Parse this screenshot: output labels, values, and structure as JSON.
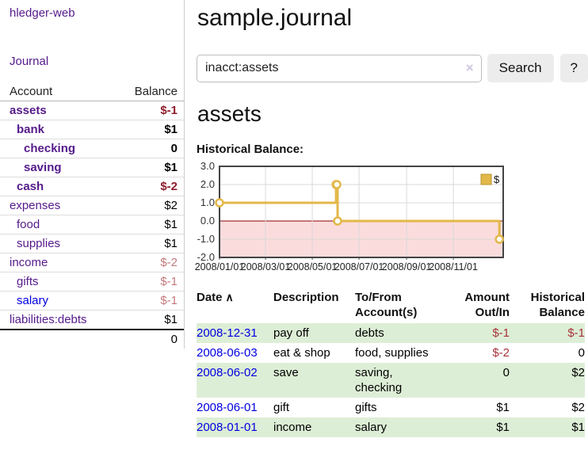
{
  "sidebar": {
    "brand": "hledger-web",
    "journal_link": "Journal",
    "accounts_table": {
      "headers": {
        "account": "Account",
        "balance": "Balance"
      },
      "rows": [
        {
          "name": "assets",
          "depth": 1,
          "bold": true,
          "name_color": "purple",
          "balance": "$-1",
          "balance_class": "neg-bold"
        },
        {
          "name": "bank",
          "depth": 2,
          "bold": true,
          "name_color": "purple",
          "balance": "$1",
          "balance_class": ""
        },
        {
          "name": "checking",
          "depth": 3,
          "bold": true,
          "name_color": "purple",
          "balance": "0",
          "balance_class": ""
        },
        {
          "name": "saving",
          "depth": 3,
          "bold": true,
          "name_color": "purple",
          "balance": "$1",
          "balance_class": ""
        },
        {
          "name": "cash",
          "depth": 2,
          "bold": true,
          "name_color": "purple",
          "balance": "$-2",
          "balance_class": "neg-bold"
        },
        {
          "name": "expenses",
          "depth": 1,
          "bold": false,
          "name_color": "purple",
          "balance": "$2",
          "balance_class": ""
        },
        {
          "name": "food",
          "depth": 2,
          "bold": false,
          "name_color": "purple",
          "balance": "$1",
          "balance_class": ""
        },
        {
          "name": "supplies",
          "depth": 2,
          "bold": false,
          "name_color": "purple",
          "balance": "$1",
          "balance_class": ""
        },
        {
          "name": "income",
          "depth": 1,
          "bold": false,
          "name_color": "purple",
          "balance": "$-2",
          "balance_class": "neg-light"
        },
        {
          "name": "gifts",
          "depth": 2,
          "bold": false,
          "name_color": "purple",
          "balance": "$-1",
          "balance_class": "neg-light"
        },
        {
          "name": "salary",
          "depth": 2,
          "bold": false,
          "name_color": "blue",
          "balance": "$-1",
          "balance_class": "neg-light"
        },
        {
          "name": "liabilities:debts",
          "depth": 1,
          "bold": false,
          "name_color": "purple",
          "balance": "$1",
          "balance_class": ""
        }
      ],
      "total": "0"
    }
  },
  "header": {
    "title": "sample.journal"
  },
  "search": {
    "value": "inacct:assets",
    "clear_icon": "×",
    "button_label": "Search",
    "help_label": "?"
  },
  "account_page": {
    "heading": "assets",
    "chart_title": "Historical Balance:"
  },
  "chart_data": {
    "type": "line",
    "step": true,
    "title": "Historical Balance",
    "legend": "$",
    "legend_position": "top-right",
    "series_color": "#e3b84a",
    "negative_fill": "#fbdcdc",
    "zero_line_color": "#8b0000",
    "grid": true,
    "ylim": [
      -2,
      3
    ],
    "y_ticks": [
      3.0,
      2.0,
      1.0,
      0.0,
      -1.0,
      -2.0
    ],
    "x_range_days": [
      0,
      370
    ],
    "x_tick_days": [
      0,
      60,
      121,
      182,
      244,
      305
    ],
    "x_ticks": [
      "2008/01/01",
      "2008/03/01",
      "2008/05/01",
      "2008/07/01",
      "2008/09/01",
      "2008/11/01"
    ],
    "points": [
      {
        "date": "2008-01-01",
        "day": 0,
        "value": 1
      },
      {
        "date": "2008-06-01",
        "day": 152,
        "value": 2
      },
      {
        "date": "2008-06-02",
        "day": 153,
        "value": 2
      },
      {
        "date": "2008-06-03",
        "day": 154,
        "value": 0
      },
      {
        "date": "2008-12-31",
        "day": 365,
        "value": -1
      }
    ]
  },
  "register_table": {
    "headers": {
      "date": "Date",
      "sort_icon": "∧",
      "description": "Description",
      "tofrom_line1": "To/From",
      "tofrom_line2": "Account(s)",
      "amount_line1": "Amount",
      "amount_line2": "Out/In",
      "balance_line1": "Historical",
      "balance_line2": "Balance"
    },
    "rows": [
      {
        "date": "2008-12-31",
        "description": "pay off",
        "accounts_lines": [
          "debts"
        ],
        "amount": "$-1",
        "amount_class": "neg",
        "balance": "$-1",
        "balance_class": "neg"
      },
      {
        "date": "2008-06-03",
        "description": "eat & shop",
        "accounts_lines": [
          "food, supplies"
        ],
        "amount": "$-2",
        "amount_class": "neg",
        "balance": "0",
        "balance_class": ""
      },
      {
        "date": "2008-06-02",
        "description": "save",
        "accounts_lines": [
          "saving,",
          "checking"
        ],
        "amount": "0",
        "amount_class": "",
        "balance": "$2",
        "balance_class": ""
      },
      {
        "date": "2008-06-01",
        "description": "gift",
        "accounts_lines": [
          "gifts"
        ],
        "amount": "$1",
        "amount_class": "",
        "balance": "$2",
        "balance_class": ""
      },
      {
        "date": "2008-01-01",
        "description": "income",
        "accounts_lines": [
          "salary"
        ],
        "amount": "$1",
        "amount_class": "",
        "balance": "$1",
        "balance_class": ""
      }
    ]
  }
}
